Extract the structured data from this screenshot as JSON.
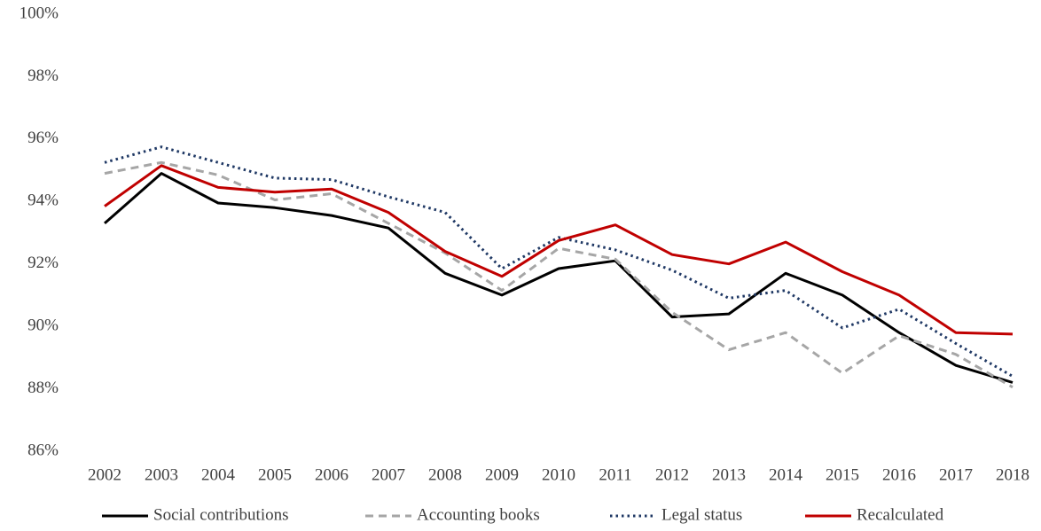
{
  "chart_data": {
    "type": "line",
    "categories": [
      "2002",
      "2003",
      "2004",
      "2005",
      "2006",
      "2007",
      "2008",
      "2009",
      "2010",
      "2011",
      "2012",
      "2013",
      "2014",
      "2015",
      "2016",
      "2017",
      "2018"
    ],
    "series": [
      {
        "name": "Social contributions",
        "color": "#000000",
        "style": "solid",
        "values": [
          93.3,
          94.9,
          93.95,
          93.8,
          93.55,
          93.15,
          91.7,
          91.0,
          91.85,
          92.1,
          90.3,
          90.4,
          91.7,
          91.0,
          89.8,
          88.75,
          88.2
        ]
      },
      {
        "name": "Accounting books",
        "color": "#a6a6a6",
        "style": "dashed",
        "values": [
          94.9,
          95.25,
          94.85,
          94.05,
          94.25,
          93.3,
          92.35,
          91.15,
          92.5,
          92.15,
          90.45,
          89.25,
          89.8,
          88.5,
          89.7,
          89.1,
          88.05
        ]
      },
      {
        "name": "Legal status",
        "color": "#1f3864",
        "style": "dotted",
        "values": [
          95.25,
          95.75,
          95.25,
          94.75,
          94.7,
          94.15,
          93.65,
          91.85,
          92.85,
          92.45,
          91.8,
          90.9,
          91.15,
          89.95,
          90.55,
          89.45,
          88.4
        ]
      },
      {
        "name": "Recalculated",
        "color": "#c00000",
        "style": "solid",
        "values": [
          93.85,
          95.15,
          94.45,
          94.3,
          94.4,
          93.65,
          92.4,
          91.6,
          92.75,
          93.25,
          92.3,
          92.0,
          92.7,
          91.75,
          91.0,
          89.8,
          89.75
        ]
      }
    ],
    "ylim": [
      86,
      100
    ],
    "yticks": [
      {
        "value": 86,
        "label": "86%"
      },
      {
        "value": 88,
        "label": "88%"
      },
      {
        "value": 90,
        "label": "90%"
      },
      {
        "value": 92,
        "label": "92%"
      },
      {
        "value": 94,
        "label": "94%"
      },
      {
        "value": 96,
        "label": "96%"
      },
      {
        "value": 98,
        "label": "98%"
      },
      {
        "value": 100,
        "label": "100%"
      }
    ],
    "grid": false,
    "legend": "bottom"
  }
}
